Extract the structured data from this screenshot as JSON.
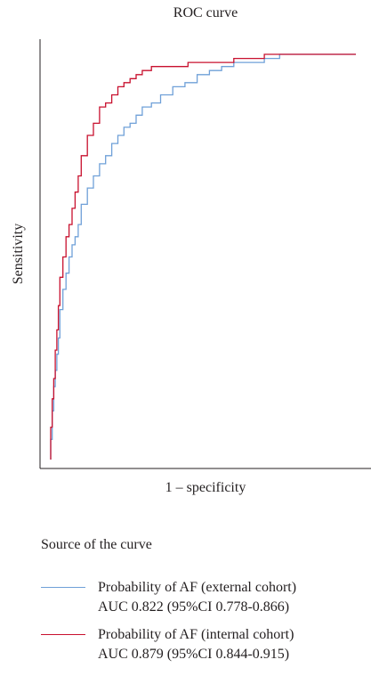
{
  "chart_data": {
    "type": "line",
    "title": "ROC curve",
    "xlabel": "1 – specificity",
    "ylabel": "Sensitivity",
    "xlim": [
      0,
      1
    ],
    "ylim": [
      0,
      1
    ],
    "grid": false,
    "legend": {
      "title": "Source of the curve",
      "placement": "below"
    },
    "series": [
      {
        "name": "Probability of AF (external cohort)",
        "detail": "AUC 0.822 (95%CI 0.778-0.866)",
        "color": "#6fa0d8",
        "x": [
          0.0,
          0.005,
          0.01,
          0.015,
          0.02,
          0.025,
          0.03,
          0.04,
          0.05,
          0.06,
          0.07,
          0.08,
          0.09,
          0.1,
          0.12,
          0.14,
          0.16,
          0.18,
          0.2,
          0.22,
          0.24,
          0.26,
          0.28,
          0.3,
          0.33,
          0.36,
          0.4,
          0.44,
          0.48,
          0.52,
          0.56,
          0.6,
          0.65,
          0.7,
          0.75,
          0.8,
          1.0
        ],
        "y": [
          0.0,
          0.05,
          0.12,
          0.18,
          0.22,
          0.26,
          0.3,
          0.37,
          0.42,
          0.46,
          0.5,
          0.53,
          0.55,
          0.58,
          0.63,
          0.67,
          0.7,
          0.73,
          0.75,
          0.78,
          0.8,
          0.82,
          0.83,
          0.85,
          0.87,
          0.88,
          0.9,
          0.92,
          0.93,
          0.95,
          0.96,
          0.97,
          0.98,
          0.98,
          0.99,
          1.0,
          1.0
        ]
      },
      {
        "name": "Probability of AF (internal cohort)",
        "detail": "AUC 0.879 (95%CI 0.844-0.915)",
        "color": "#c8102e",
        "x": [
          0.0,
          0.005,
          0.01,
          0.015,
          0.02,
          0.025,
          0.03,
          0.04,
          0.05,
          0.06,
          0.07,
          0.08,
          0.09,
          0.1,
          0.12,
          0.14,
          0.16,
          0.18,
          0.2,
          0.22,
          0.24,
          0.26,
          0.28,
          0.3,
          0.33,
          0.36,
          0.4,
          0.45,
          0.5,
          0.55,
          0.6,
          0.65,
          0.7,
          0.8,
          1.0
        ],
        "y": [
          0.0,
          0.08,
          0.15,
          0.2,
          0.27,
          0.32,
          0.38,
          0.45,
          0.5,
          0.55,
          0.58,
          0.62,
          0.66,
          0.7,
          0.75,
          0.8,
          0.83,
          0.87,
          0.88,
          0.9,
          0.92,
          0.93,
          0.94,
          0.95,
          0.96,
          0.97,
          0.97,
          0.97,
          0.98,
          0.98,
          0.98,
          0.99,
          0.99,
          1.0,
          1.0
        ]
      }
    ]
  }
}
